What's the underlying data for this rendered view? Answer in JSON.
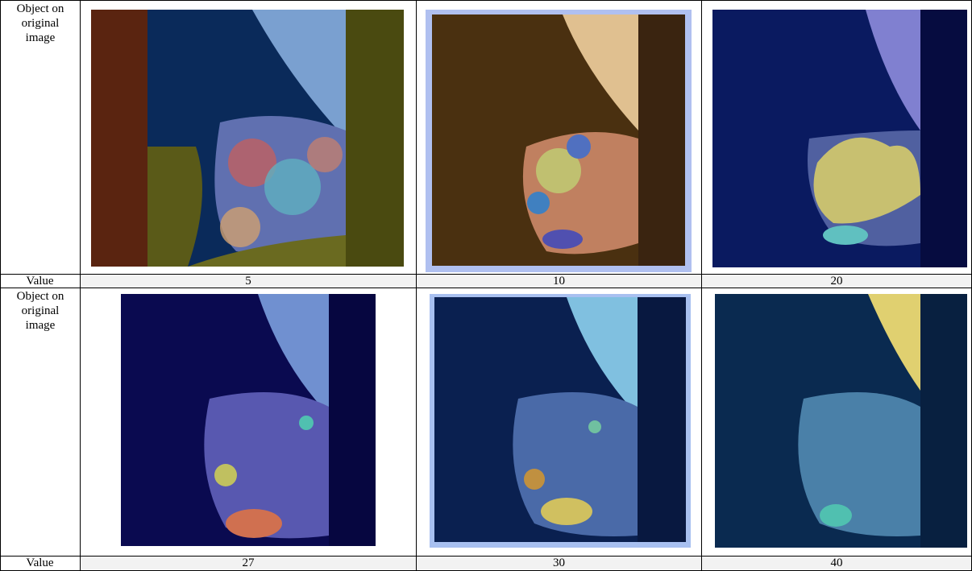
{
  "table": {
    "rows": [
      [
        "Object on original image"
      ],
      [
        "Value",
        5,
        10,
        20
      ],
      [
        "Object on original image"
      ],
      [
        "Value",
        27,
        30,
        40
      ]
    ]
  }
}
